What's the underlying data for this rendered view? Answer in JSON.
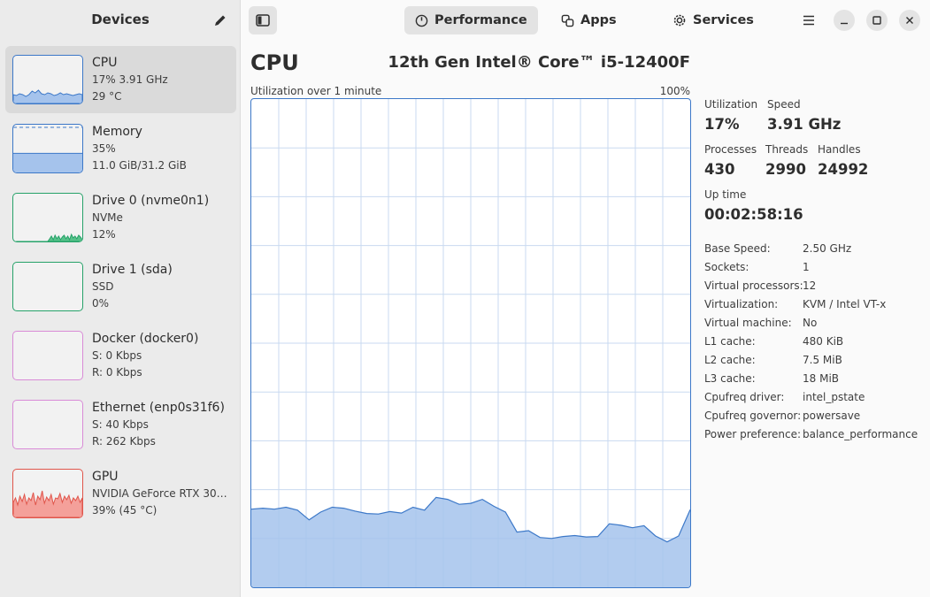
{
  "sidebar": {
    "title": "Devices",
    "devices": [
      {
        "name": "CPU",
        "line1": "17% 3.91 GHz",
        "line2": "29 °C",
        "color": "#3c78c8",
        "fill": "#a5c3ec",
        "kind": "graph",
        "selected": true
      },
      {
        "name": "Memory",
        "line1": "35%",
        "line2": "11.0 GiB/31.2 GiB",
        "color": "#3c78c8",
        "fill": "#a5c3ec",
        "kind": "memory",
        "selected": false
      },
      {
        "name": "Drive 0 (nvme0n1)",
        "line1": "NVMe",
        "line2": "12%",
        "color": "#26a269",
        "fill": "#57c28a",
        "kind": "drive",
        "selected": false
      },
      {
        "name": "Drive 1 (sda)",
        "line1": "SSD",
        "line2": "0%",
        "color": "#26a269",
        "fill": "#57c28a",
        "kind": "empty",
        "selected": false
      },
      {
        "name": "Docker (docker0)",
        "line1": "S: 0 Kbps",
        "line2": "R: 0 Kbps",
        "color": "#d98bd7",
        "fill": "#e9b8e8",
        "kind": "empty",
        "selected": false
      },
      {
        "name": "Ethernet (enp0s31f6)",
        "line1": "S: 40 Kbps",
        "line2": "R: 262 Kbps",
        "color": "#d98bd7",
        "fill": "#e9b8e8",
        "kind": "empty",
        "selected": false
      },
      {
        "name": "GPU",
        "line1": "NVIDIA GeForce RTX 30…",
        "line2": "39% (45 °C)",
        "color": "#e0554b",
        "fill": "#f4a09a",
        "kind": "gpu",
        "selected": false
      }
    ]
  },
  "header": {
    "tabs": [
      {
        "label": "Performance",
        "icon": "gauge-icon",
        "active": true
      },
      {
        "label": "Apps",
        "icon": "apps-icon",
        "active": false
      },
      {
        "label": "Services",
        "icon": "gear-icon",
        "active": false
      }
    ]
  },
  "main": {
    "title": "CPU",
    "model": "12th Gen Intel® Core™ i5-12400F",
    "graph_label": "Utilization over 1 minute",
    "graph_max": "100%",
    "stats": {
      "utilization": {
        "label": "Utilization",
        "value": "17%"
      },
      "speed": {
        "label": "Speed",
        "value": "3.91 GHz"
      },
      "processes": {
        "label": "Processes",
        "value": "430"
      },
      "threads": {
        "label": "Threads",
        "value": "2990"
      },
      "handles": {
        "label": "Handles",
        "value": "24992"
      },
      "uptime": {
        "label": "Up time",
        "value": "00:02:58:16"
      }
    },
    "info": [
      {
        "key": "Base Speed:",
        "value": "2.50 GHz"
      },
      {
        "key": "Sockets:",
        "value": "1"
      },
      {
        "key": "Virtual processors:",
        "value": "12"
      },
      {
        "key": "Virtualization:",
        "value": "KVM / Intel VT-x"
      },
      {
        "key": "Virtual machine:",
        "value": "No"
      },
      {
        "key": "L1 cache:",
        "value": "480 KiB"
      },
      {
        "key": "L2 cache:",
        "value": "7.5 MiB"
      },
      {
        "key": "L3 cache:",
        "value": "18 MiB"
      },
      {
        "key": "Cpufreq driver:",
        "value": "intel_pstate"
      },
      {
        "key": "Cpufreq governor:",
        "value": "powersave"
      },
      {
        "key": "Power preference:",
        "value": "balance_performance"
      }
    ]
  },
  "chart_data": {
    "type": "area",
    "ylim": [
      0,
      100
    ],
    "color": "#3c78c8",
    "fill": "#a5c3ec",
    "values": [
      16,
      16.2,
      16,
      16.4,
      15.8,
      13.8,
      15.4,
      16.4,
      16.2,
      15.6,
      15.1,
      15,
      15.5,
      15.2,
      16.4,
      15.8,
      18.4,
      18,
      17,
      17.2,
      18,
      16.6,
      15.4,
      11.3,
      11.6,
      10.2,
      10,
      10.4,
      10.6,
      10.3,
      10.4,
      13,
      12.7,
      12.2,
      12.6,
      10.5,
      9.3,
      10.5,
      15.9
    ]
  }
}
